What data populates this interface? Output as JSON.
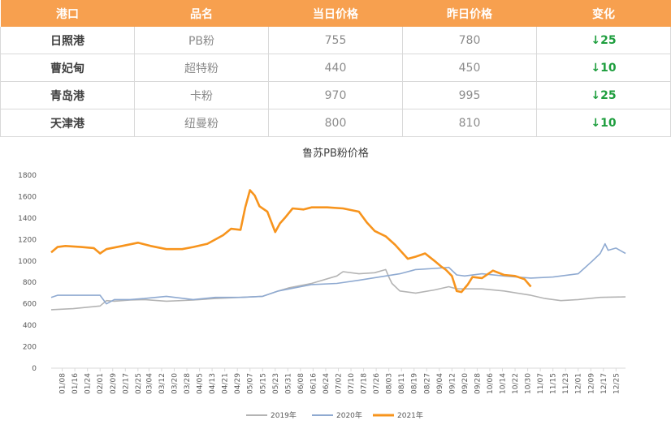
{
  "table": {
    "headers": [
      "港口",
      "品名",
      "当日价格",
      "昨日价格",
      "变化"
    ],
    "rows": [
      {
        "port": "日照港",
        "product": "PB粉",
        "today": "755",
        "yesterday": "780",
        "change": "↓25"
      },
      {
        "port": "曹妃甸",
        "product": "超特粉",
        "today": "440",
        "yesterday": "450",
        "change": "↓10"
      },
      {
        "port": "青岛港",
        "product": "卡粉",
        "today": "970",
        "yesterday": "995",
        "change": "↓25"
      },
      {
        "port": "天津港",
        "product": "纽曼粉",
        "today": "800",
        "yesterday": "810",
        "change": "↓10"
      }
    ]
  },
  "colors": {
    "header": "#f7a04f",
    "change": "#1e9e3e",
    "s2019": "#b4b4b4",
    "s2020": "#8faad1",
    "s2021": "#f7941d"
  },
  "chart_data": {
    "type": "line",
    "title": "鲁苏PB粉价格",
    "ylim": [
      0,
      1800
    ],
    "yticks": [
      0,
      200,
      400,
      600,
      800,
      1000,
      1200,
      1400,
      1600,
      1800
    ],
    "xlim": [
      "01/01",
      "12/31"
    ],
    "xticks": [
      "01/08",
      "01/16",
      "01/24",
      "02/01",
      "02/09",
      "02/17",
      "02/25",
      "03/04",
      "03/12",
      "03/20",
      "03/28",
      "04/05",
      "04/13",
      "04/21",
      "04/29",
      "05/07",
      "05/15",
      "05/23",
      "05/31",
      "06/08",
      "06/16",
      "06/24",
      "07/02",
      "07/10",
      "07/18",
      "07/26",
      "08/03",
      "08/11",
      "08/19",
      "08/27",
      "09/04",
      "09/12",
      "09/20",
      "09/28",
      "10/06",
      "10/14",
      "10/22",
      "10/30",
      "11/07",
      "11/15",
      "11/23",
      "12/01",
      "12/09",
      "12/17",
      "12/25"
    ],
    "legend_position": "bottom",
    "series": [
      {
        "name": "2019年",
        "x": [
          "01/01",
          "01/15",
          "02/01",
          "02/05",
          "02/10",
          "02/20",
          "03/01",
          "03/15",
          "04/01",
          "04/15",
          "05/01",
          "05/15",
          "05/25",
          "06/01",
          "06/15",
          "07/01",
          "07/05",
          "07/15",
          "07/25",
          "08/01",
          "08/03",
          "08/05",
          "08/10",
          "08/20",
          "09/01",
          "09/10",
          "09/15",
          "10/01",
          "10/15",
          "11/01",
          "11/10",
          "11/20",
          "12/01",
          "12/15",
          "12/31"
        ],
        "y": [
          545,
          555,
          580,
          630,
          625,
          635,
          640,
          625,
          635,
          650,
          660,
          670,
          720,
          750,
          790,
          860,
          900,
          880,
          890,
          920,
          850,
          790,
          720,
          700,
          730,
          760,
          740,
          740,
          720,
          680,
          650,
          630,
          640,
          660,
          665
        ]
      },
      {
        "name": "2020年",
        "x": [
          "01/01",
          "01/05",
          "01/20",
          "02/01",
          "02/05",
          "02/10",
          "02/20",
          "03/01",
          "03/15",
          "04/01",
          "04/15",
          "05/01",
          "05/15",
          "05/25",
          "06/01",
          "06/15",
          "07/01",
          "07/15",
          "08/01",
          "08/10",
          "08/20",
          "09/01",
          "09/10",
          "09/15",
          "09/20",
          "10/01",
          "10/15",
          "11/01",
          "11/15",
          "12/01",
          "12/10",
          "12/15",
          "12/18",
          "12/20",
          "12/25",
          "12/31"
        ],
        "y": [
          660,
          680,
          680,
          680,
          600,
          640,
          640,
          650,
          670,
          640,
          660,
          660,
          670,
          720,
          740,
          780,
          790,
          820,
          860,
          880,
          920,
          930,
          940,
          870,
          860,
          880,
          860,
          840,
          850,
          880,
          1000,
          1070,
          1160,
          1100,
          1120,
          1070
        ]
      },
      {
        "name": "2021年",
        "x": [
          "01/01",
          "01/05",
          "01/10",
          "01/20",
          "01/28",
          "02/01",
          "02/05",
          "02/15",
          "02/25",
          "03/05",
          "03/15",
          "03/25",
          "04/01",
          "04/10",
          "04/20",
          "04/25",
          "05/01",
          "05/04",
          "05/07",
          "05/10",
          "05/13",
          "05/18",
          "05/23",
          "05/26",
          "05/29",
          "06/03",
          "06/10",
          "06/15",
          "06/25",
          "07/05",
          "07/15",
          "07/20",
          "07/25",
          "08/01",
          "08/07",
          "08/15",
          "08/20",
          "08/26",
          "09/01",
          "09/05",
          "09/08",
          "09/12",
          "09/15",
          "09/18",
          "09/22",
          "09/25",
          "10/01",
          "10/08",
          "10/15",
          "10/22",
          "10/28",
          "11/01"
        ],
        "y": [
          1080,
          1130,
          1140,
          1130,
          1120,
          1070,
          1110,
          1140,
          1170,
          1140,
          1110,
          1110,
          1130,
          1160,
          1240,
          1300,
          1290,
          1500,
          1660,
          1610,
          1510,
          1460,
          1270,
          1350,
          1400,
          1490,
          1480,
          1500,
          1500,
          1490,
          1460,
          1360,
          1280,
          1230,
          1150,
          1020,
          1040,
          1070,
          1000,
          950,
          920,
          860,
          720,
          710,
          780,
          850,
          840,
          910,
          870,
          860,
          830,
          760
        ]
      }
    ]
  }
}
